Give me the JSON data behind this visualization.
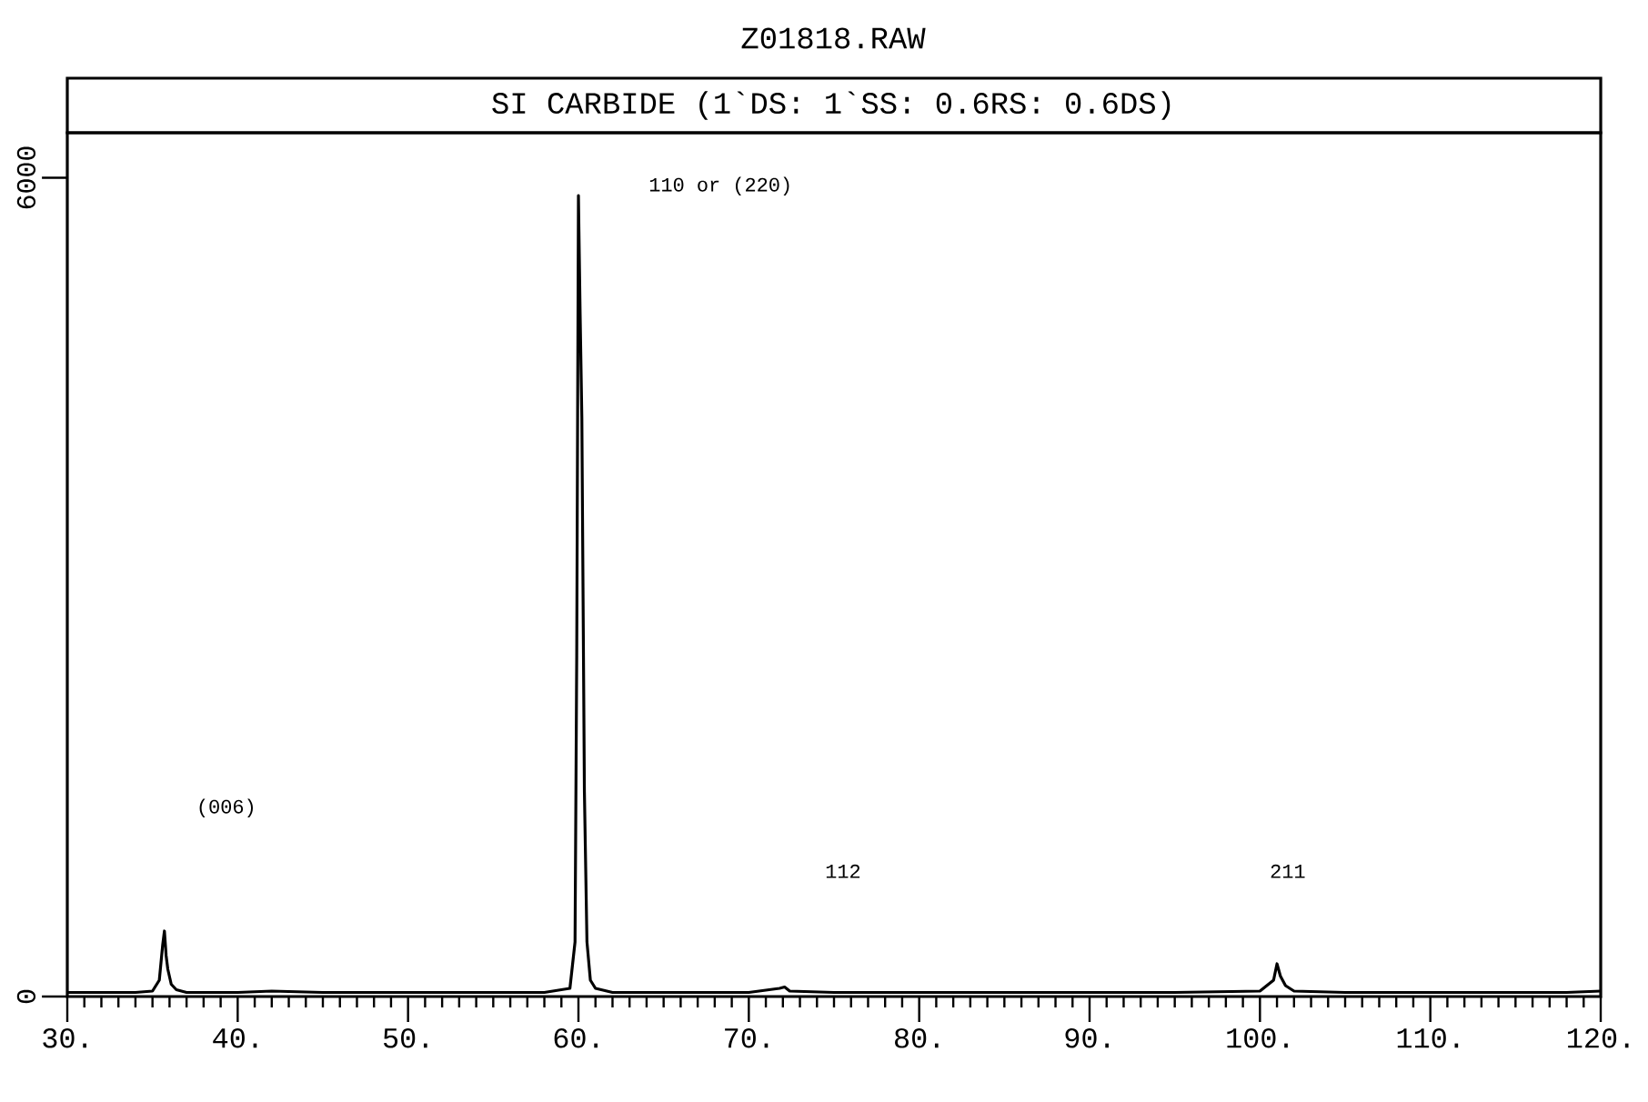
{
  "chart_data": {
    "type": "line",
    "title": "Z01818.RAW",
    "subtitle": "SI CARBIDE (1`DS: 1`SS: 0.6RS: 0.6DS)",
    "annotations": [
      "(006)",
      "110 or (220)",
      "112",
      "211"
    ],
    "series": [
      {
        "color": "#000000",
        "x": [
          30,
          32,
          34,
          35,
          35.4,
          35.6,
          35.7,
          35.8,
          35.9,
          36.1,
          36.4,
          37,
          40,
          42,
          45,
          50,
          55,
          58,
          59.5,
          59.8,
          59.9,
          60.0,
          60.1,
          60.2,
          60.35,
          60.5,
          60.7,
          61,
          62,
          65,
          70,
          71.8,
          72.1,
          72.4,
          75,
          80,
          90,
          95,
          100,
          100.8,
          101.0,
          101.2,
          101.5,
          102,
          105,
          110,
          115,
          118,
          120
        ],
        "values": [
          30,
          30,
          30,
          40,
          120,
          380,
          480,
          300,
          200,
          90,
          50,
          30,
          30,
          40,
          30,
          30,
          30,
          30,
          60,
          400,
          2500,
          5870,
          5000,
          4240,
          1500,
          400,
          120,
          60,
          30,
          30,
          30,
          60,
          70,
          40,
          30,
          30,
          30,
          30,
          40,
          120,
          240,
          150,
          80,
          40,
          30,
          30,
          30,
          30,
          40
        ]
      }
    ],
    "xlim": [
      30,
      120
    ],
    "ylim": [
      0,
      6330
    ],
    "xticks": [
      {
        "value": 30,
        "label": "30."
      },
      {
        "value": 40,
        "label": "40."
      },
      {
        "value": 50,
        "label": "50."
      },
      {
        "value": 60,
        "label": "60."
      },
      {
        "value": 70,
        "label": "70."
      },
      {
        "value": 80,
        "label": "80."
      },
      {
        "value": 90,
        "label": "90."
      },
      {
        "value": 100,
        "label": "100."
      },
      {
        "value": 110,
        "label": "110."
      },
      {
        "value": 120,
        "label": "120."
      }
    ],
    "yticks": [
      0,
      6000
    ],
    "grid": false,
    "marker": "none",
    "line_style": "solid"
  }
}
